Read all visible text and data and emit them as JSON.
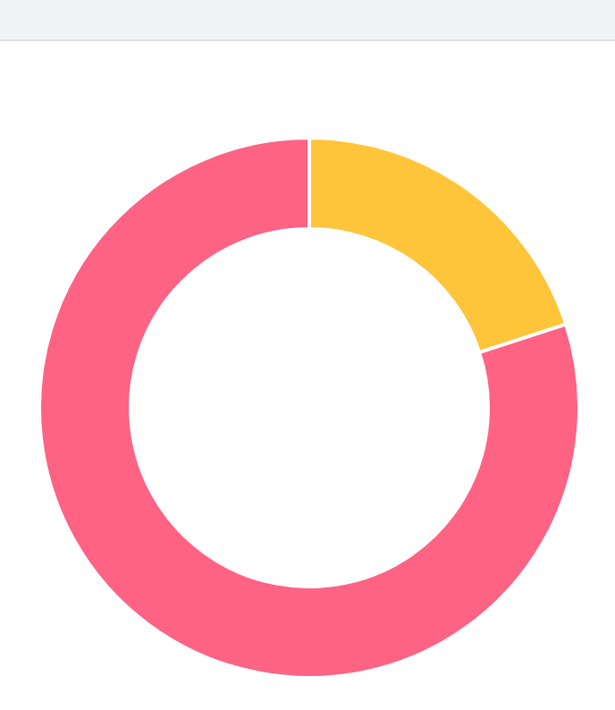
{
  "chart_data": {
    "type": "donut",
    "categories": [
      null,
      null
    ],
    "values": [
      20,
      80
    ],
    "colors": [
      "#ffc53a",
      "#ff6384"
    ]
  }
}
